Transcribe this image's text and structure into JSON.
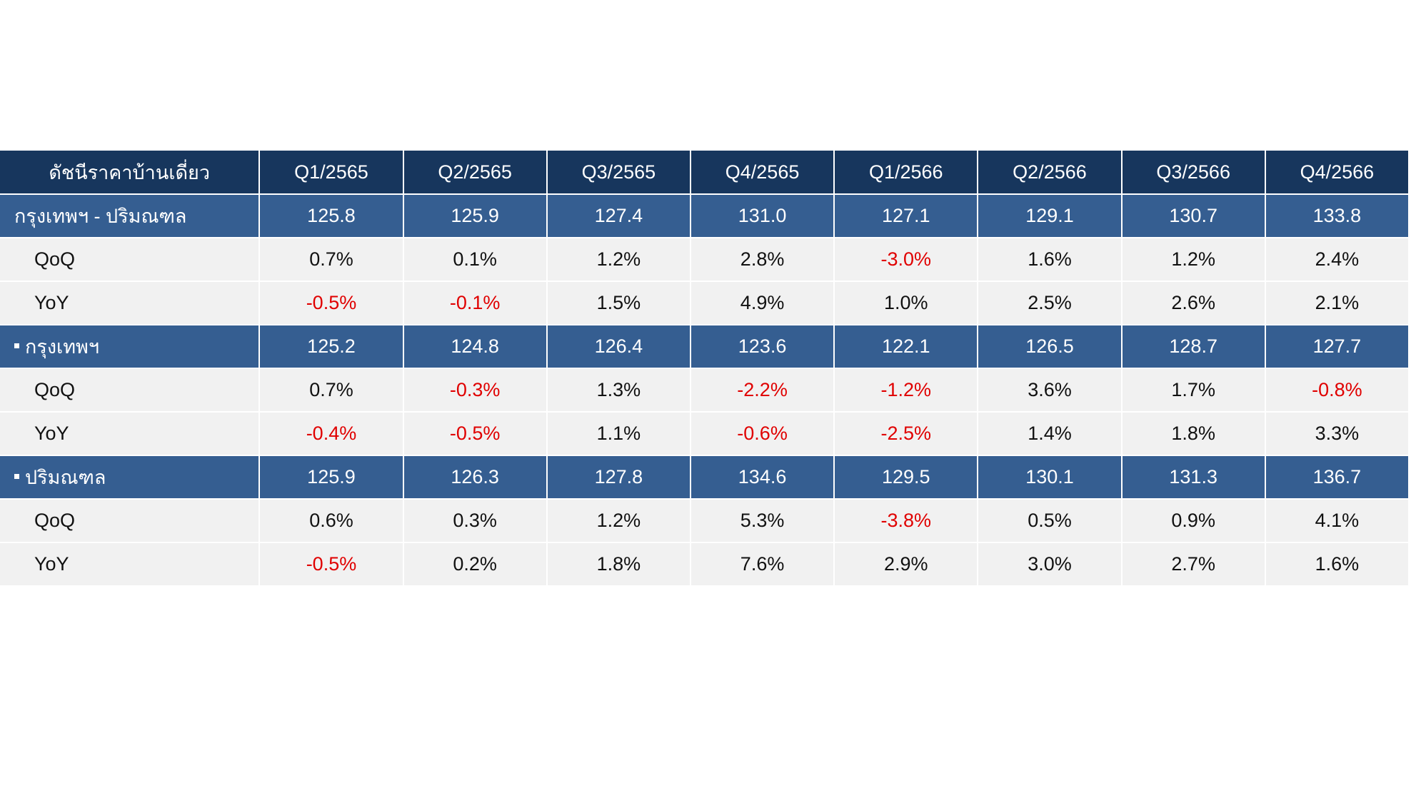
{
  "chart_data": {
    "type": "table",
    "header": {
      "label": "ดัชนีราคาบ้านเดี่ยว",
      "quarters": [
        "Q1/2565",
        "Q2/2565",
        "Q3/2565",
        "Q4/2565",
        "Q1/2566",
        "Q2/2566",
        "Q3/2566",
        "Q4/2566"
      ]
    },
    "groups": [
      {
        "name": "กรุงเทพฯ - ปริมณฑล",
        "bullet": false,
        "index": [
          "125.8",
          "125.9",
          "127.4",
          "131.0",
          "127.1",
          "129.1",
          "130.7",
          "133.8"
        ],
        "qoq": {
          "label": "QoQ",
          "values": [
            "0.7%",
            "0.1%",
            "1.2%",
            "2.8%",
            "-3.0%",
            "1.6%",
            "1.2%",
            "2.4%"
          ]
        },
        "yoy": {
          "label": "YoY",
          "values": [
            "-0.5%",
            "-0.1%",
            "1.5%",
            "4.9%",
            "1.0%",
            "2.5%",
            "2.6%",
            "2.1%"
          ]
        }
      },
      {
        "name": "กรุงเทพฯ",
        "bullet": true,
        "index": [
          "125.2",
          "124.8",
          "126.4",
          "123.6",
          "122.1",
          "126.5",
          "128.7",
          "127.7"
        ],
        "qoq": {
          "label": "QoQ",
          "values": [
            "0.7%",
            "-0.3%",
            "1.3%",
            "-2.2%",
            "-1.2%",
            "3.6%",
            "1.7%",
            "-0.8%"
          ]
        },
        "yoy": {
          "label": "YoY",
          "values": [
            "-0.4%",
            "-0.5%",
            "1.1%",
            "-0.6%",
            "-2.5%",
            "1.4%",
            "1.8%",
            "3.3%"
          ]
        }
      },
      {
        "name": "ปริมณฑล",
        "bullet": true,
        "index": [
          "125.9",
          "126.3",
          "127.8",
          "134.6",
          "129.5",
          "130.1",
          "131.3",
          "136.7"
        ],
        "qoq": {
          "label": "QoQ",
          "values": [
            "0.6%",
            "0.3%",
            "1.2%",
            "5.3%",
            "-3.8%",
            "0.5%",
            "0.9%",
            "4.1%"
          ]
        },
        "yoy": {
          "label": "YoY",
          "values": [
            "-0.5%",
            "0.2%",
            "1.8%",
            "7.6%",
            "2.9%",
            "3.0%",
            "2.7%",
            "1.6%"
          ]
        }
      }
    ]
  },
  "colors": {
    "header_bg": "#17365d",
    "group_row_bg": "#355e91",
    "sub_row_bg": "#f1f1f1",
    "negative_text": "#e00000"
  }
}
